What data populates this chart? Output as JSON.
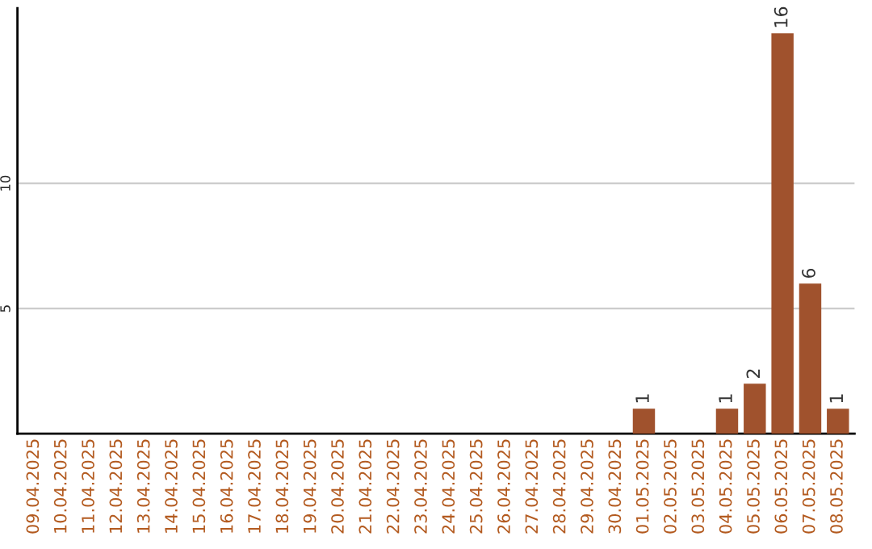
{
  "chart_data": {
    "type": "bar",
    "categories": [
      "09.04.2025",
      "10.04.2025",
      "11.04.2025",
      "12.04.2025",
      "13.04.2025",
      "14.04.2025",
      "15.04.2025",
      "16.04.2025",
      "17.04.2025",
      "18.04.2025",
      "19.04.2025",
      "20.04.2025",
      "21.04.2025",
      "22.04.2025",
      "23.04.2025",
      "24.04.2025",
      "25.04.2025",
      "26.04.2025",
      "27.04.2025",
      "28.04.2025",
      "29.04.2025",
      "30.04.2025",
      "01.05.2025",
      "02.05.2025",
      "03.05.2025",
      "04.05.2025",
      "05.05.2025",
      "06.05.2025",
      "07.05.2025",
      "08.05.2025"
    ],
    "values": [
      0,
      0,
      0,
      0,
      0,
      0,
      0,
      0,
      0,
      0,
      0,
      0,
      0,
      0,
      0,
      0,
      0,
      0,
      0,
      0,
      0,
      0,
      1,
      0,
      0,
      1,
      2,
      16,
      6,
      1
    ],
    "value_labels": [
      null,
      null,
      null,
      null,
      null,
      null,
      null,
      null,
      null,
      null,
      null,
      null,
      null,
      null,
      null,
      null,
      null,
      null,
      null,
      null,
      null,
      null,
      "1",
      null,
      null,
      "1",
      "2",
      "16",
      "6",
      "1"
    ],
    "color": "#a0522d",
    "ylim": [
      0,
      17
    ],
    "yticks": [
      5,
      10
    ],
    "grid": "y"
  }
}
